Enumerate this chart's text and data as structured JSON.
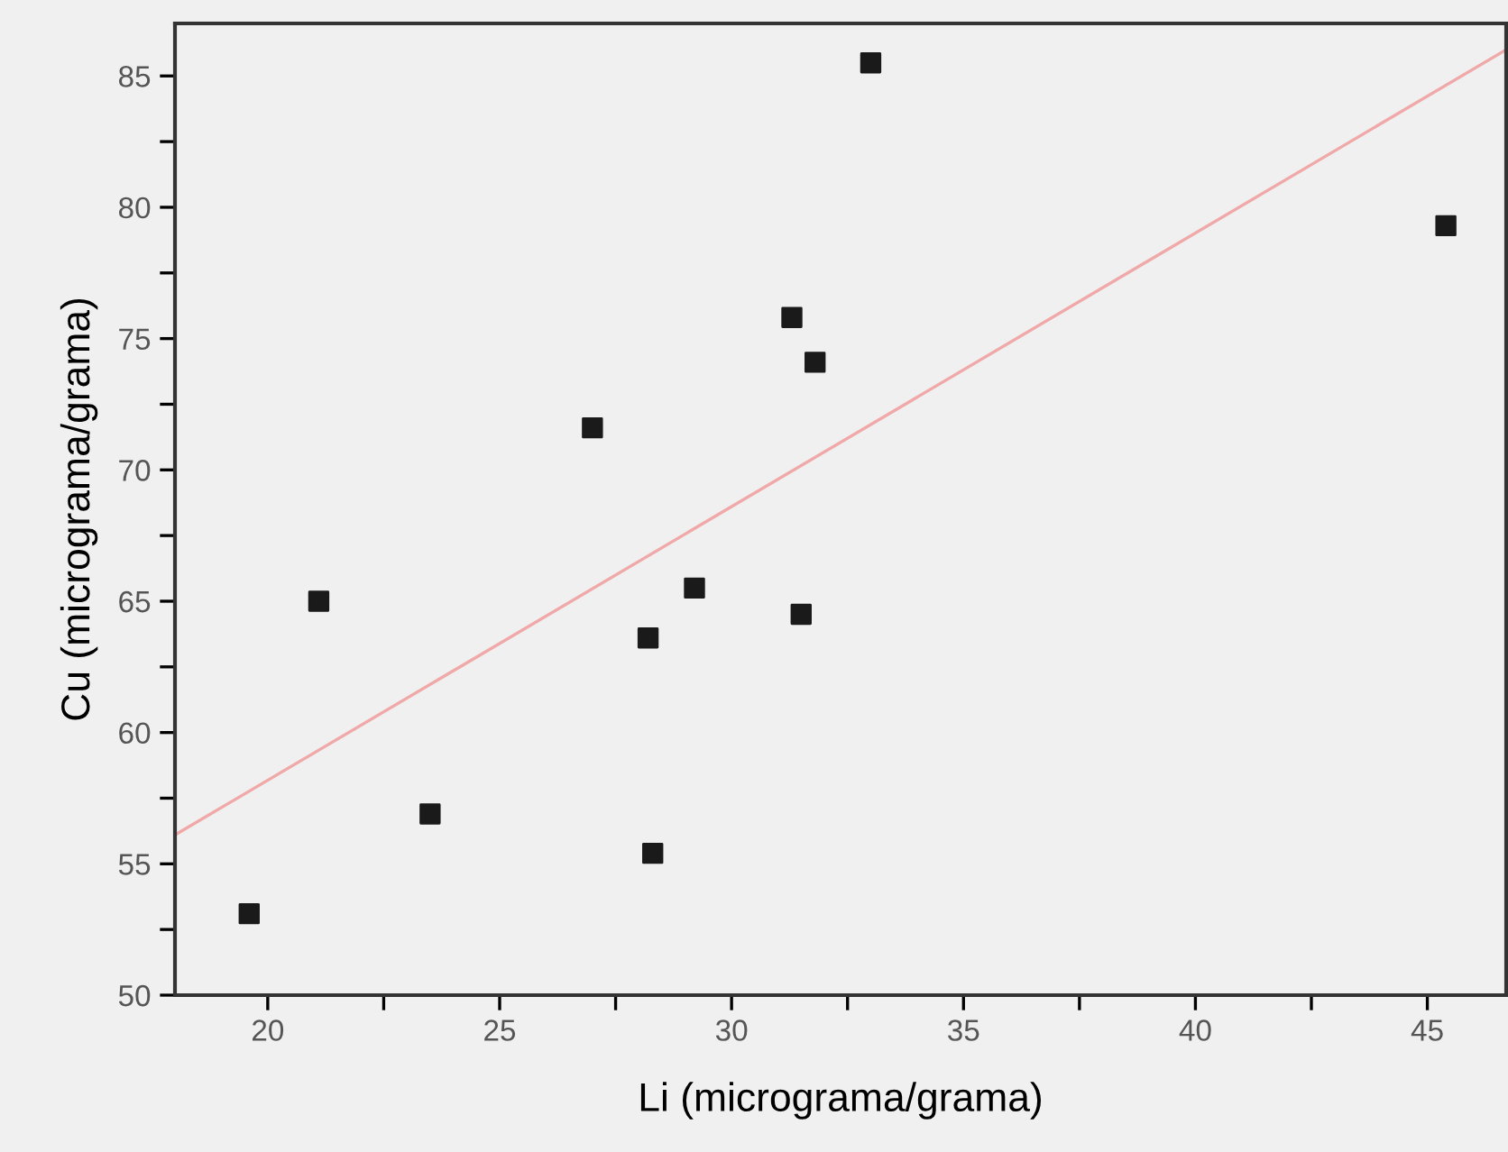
{
  "chart_data": {
    "type": "scatter",
    "xlabel": "Li (micrograma/grama)",
    "ylabel": "Cu (micrograma/grama)",
    "xlim": [
      18,
      46.7
    ],
    "ylim": [
      50,
      87
    ],
    "xticks": [
      20,
      {
        "value": 22.5,
        "label": null
      },
      25,
      {
        "value": 27.5,
        "label": null
      },
      30,
      {
        "value": 32.5,
        "label": null
      },
      35,
      {
        "value": 37.5,
        "label": null
      },
      40,
      {
        "value": 42.5,
        "label": null
      },
      45
    ],
    "yticks": [
      50,
      {
        "value": 52.5,
        "label": null
      },
      55,
      {
        "value": 57.5,
        "label": null
      },
      60,
      {
        "value": 62.5,
        "label": null
      },
      65,
      {
        "value": 67.5,
        "label": null
      },
      70,
      {
        "value": 72.5,
        "label": null
      },
      75,
      {
        "value": 77.5,
        "label": null
      },
      80,
      {
        "value": 82.5,
        "label": null
      },
      85
    ],
    "grid": false,
    "legend": false,
    "marker": "square",
    "series": [
      {
        "color": "#1a1a1a",
        "x": [
          19.6,
          21.1,
          23.5,
          28.2,
          28.3,
          29.2,
          27.0,
          31.3,
          31.8,
          33.0,
          45.4,
          31.5
        ],
        "values": [
          53.1,
          65.0,
          56.9,
          63.6,
          55.4,
          65.5,
          71.6,
          75.8,
          74.1,
          85.5,
          79.3,
          64.5
        ]
      },
      {
        "type": "line",
        "color": "#f0a8a8",
        "line_style": "solid",
        "marker": "none",
        "x": [
          18,
          46.7
        ],
        "values": [
          56.1,
          86.0
        ]
      }
    ]
  }
}
